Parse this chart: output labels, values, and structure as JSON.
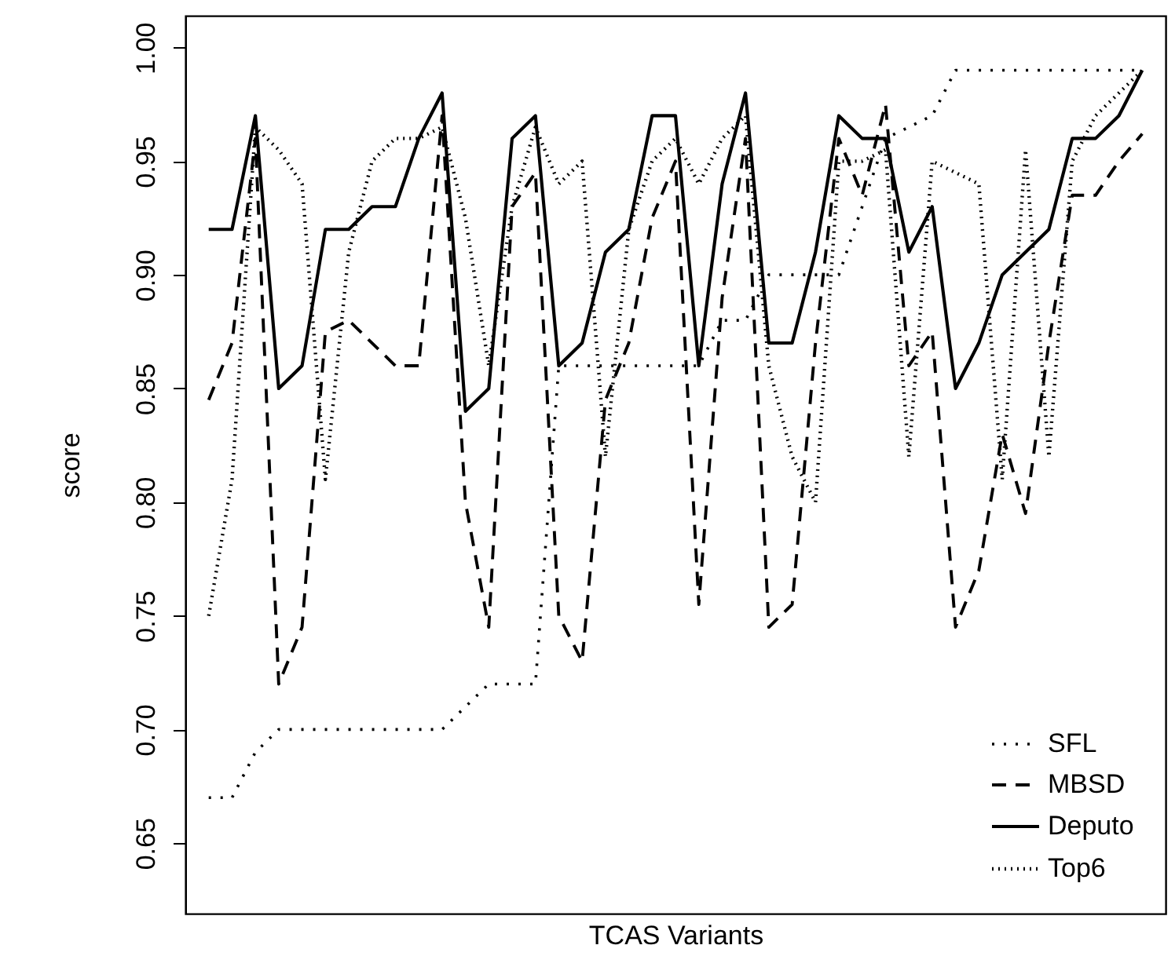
{
  "chart_data": {
    "type": "line",
    "xlabel": "TCAS Variants",
    "ylabel": "score",
    "categories": [
      null,
      null,
      null,
      null,
      null,
      null,
      null,
      null,
      null,
      null,
      null,
      null,
      null,
      null,
      null,
      null,
      null,
      null,
      null,
      null,
      null,
      null,
      null,
      null,
      null,
      null,
      null,
      null,
      null,
      null,
      null,
      null,
      null,
      null,
      null,
      null,
      null,
      null,
      null,
      null,
      null
    ],
    "ylim": [
      0.619,
      1.014
    ],
    "yticks": [
      0.65,
      {
        "value": 0.7,
        "label": "0.70"
      },
      0.75,
      {
        "value": 0.8,
        "label": "0.80"
      },
      0.85,
      {
        "value": 0.9,
        "label": "0.90"
      },
      0.95,
      {
        "value": 1,
        "label": "1.00"
      }
    ],
    "tick_labels": "y",
    "grid": false,
    "legend": "bottom right",
    "marker": "none",
    "series": [
      {
        "name": "SFL",
        "color": "#000000",
        "line_style": "dotted",
        "values": [
          0.67,
          0.67,
          0.69,
          0.7,
          0.7,
          0.7,
          0.7,
          0.7,
          0.7,
          0.7,
          0.7,
          0.71,
          0.72,
          0.72,
          0.72,
          0.86,
          0.86,
          0.86,
          0.86,
          0.86,
          0.86,
          0.86,
          0.88,
          0.88,
          0.9,
          0.9,
          0.9,
          0.9,
          0.93,
          0.96,
          0.965,
          0.97,
          0.99,
          0.99,
          0.99,
          0.99,
          0.99,
          0.99,
          0.99,
          0.99,
          0.99
        ]
      },
      {
        "name": "MBSD",
        "color": "#000000",
        "line_style": "dashed",
        "values": [
          0.845,
          0.87,
          0.96,
          0.72,
          0.745,
          0.875,
          0.88,
          0.87,
          0.86,
          0.86,
          0.97,
          0.8,
          0.745,
          0.93,
          0.945,
          0.75,
          0.73,
          0.845,
          0.87,
          0.925,
          0.95,
          0.755,
          0.89,
          0.96,
          0.745,
          0.755,
          0.87,
          0.96,
          0.935,
          0.975,
          0.86,
          0.875,
          0.745,
          0.77,
          0.83,
          0.795,
          0.87,
          0.935,
          0.935,
          0.95,
          0.962
        ]
      },
      {
        "name": "Deputo",
        "color": "#000000",
        "line_style": "solid",
        "values": [
          0.92,
          0.92,
          0.97,
          0.85,
          0.86,
          0.92,
          0.92,
          0.93,
          0.93,
          0.96,
          0.98,
          0.84,
          0.85,
          0.96,
          0.97,
          0.86,
          0.87,
          0.91,
          0.92,
          0.97,
          0.97,
          0.86,
          0.94,
          0.98,
          0.87,
          0.87,
          0.91,
          0.97,
          0.96,
          0.96,
          0.91,
          0.93,
          0.85,
          0.87,
          0.9,
          0.91,
          0.92,
          0.96,
          0.96,
          0.97,
          0.99
        ]
      },
      {
        "name": "Top6",
        "color": "#000000",
        "line_style": "dotted",
        "values": [
          0.75,
          0.81,
          0.965,
          0.955,
          0.94,
          0.81,
          0.91,
          0.95,
          0.96,
          0.96,
          0.965,
          0.925,
          0.86,
          0.93,
          0.965,
          0.94,
          0.95,
          0.82,
          0.92,
          0.95,
          0.96,
          0.94,
          0.96,
          0.97,
          0.86,
          0.82,
          0.8,
          0.95,
          0.95,
          0.955,
          0.82,
          0.95,
          0.945,
          0.94,
          0.81,
          0.955,
          0.82,
          0.95,
          0.97,
          0.98,
          0.99
        ]
      }
    ]
  }
}
